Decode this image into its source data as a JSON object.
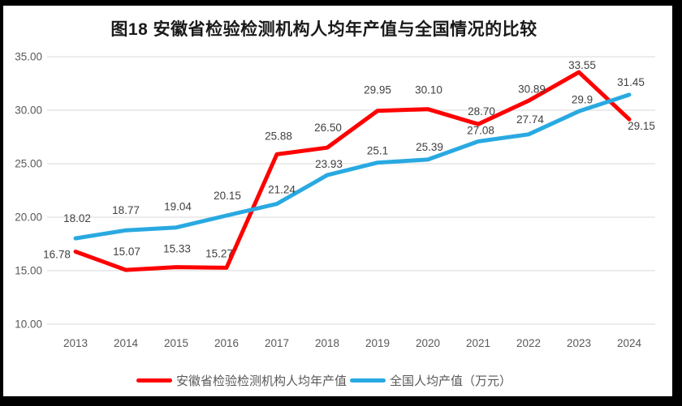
{
  "frame": {
    "background_color": "#000000",
    "page_color": "#ffffff"
  },
  "chart_data": {
    "type": "line",
    "title": "图18 安徽省检验检测机构人均年产值与全国情况的比较",
    "categories": [
      "2013",
      "2014",
      "2015",
      "2016",
      "2017",
      "2018",
      "2019",
      "2020",
      "2021",
      "2022",
      "2023",
      "2024"
    ],
    "series": [
      {
        "name": "安徽省检验检测机构人均年产值",
        "color": "#FF0000",
        "values": [
          16.78,
          15.07,
          15.33,
          15.27,
          25.88,
          26.5,
          29.95,
          30.1,
          28.7,
          30.89,
          33.55,
          29.15
        ],
        "labels": [
          "16.78",
          "15.07",
          "15.33",
          "15.27",
          "25.88",
          "26.50",
          "29.95",
          "30.10",
          "28.70",
          "30.89",
          "33.55",
          "29.15"
        ]
      },
      {
        "name": "全国人均产值（万元）",
        "color": "#29A9E1",
        "values": [
          18.02,
          18.77,
          19.04,
          20.15,
          21.24,
          23.93,
          25.1,
          25.39,
          27.08,
          27.74,
          29.9,
          31.45
        ],
        "labels": [
          "18.02",
          "18.77",
          "19.04",
          "20.15",
          "21.24",
          "23.93",
          "25.1",
          "25.39",
          "27.08",
          "27.74",
          "29.9",
          "31.45"
        ]
      }
    ],
    "xlabel": "",
    "ylabel": "",
    "y_axis": {
      "min": 10,
      "max": 35,
      "tick_step": 5,
      "tick_labels": [
        "10.00",
        "15.00",
        "20.00",
        "25.00",
        "30.00",
        "35.00"
      ]
    },
    "grid": true,
    "legend_position": "bottom",
    "styles": {
      "gridline_color": "#D9D9D9",
      "axis_label_color": "#595959",
      "data_label_color": "#404040",
      "title_color": "#1a1a1a"
    }
  }
}
